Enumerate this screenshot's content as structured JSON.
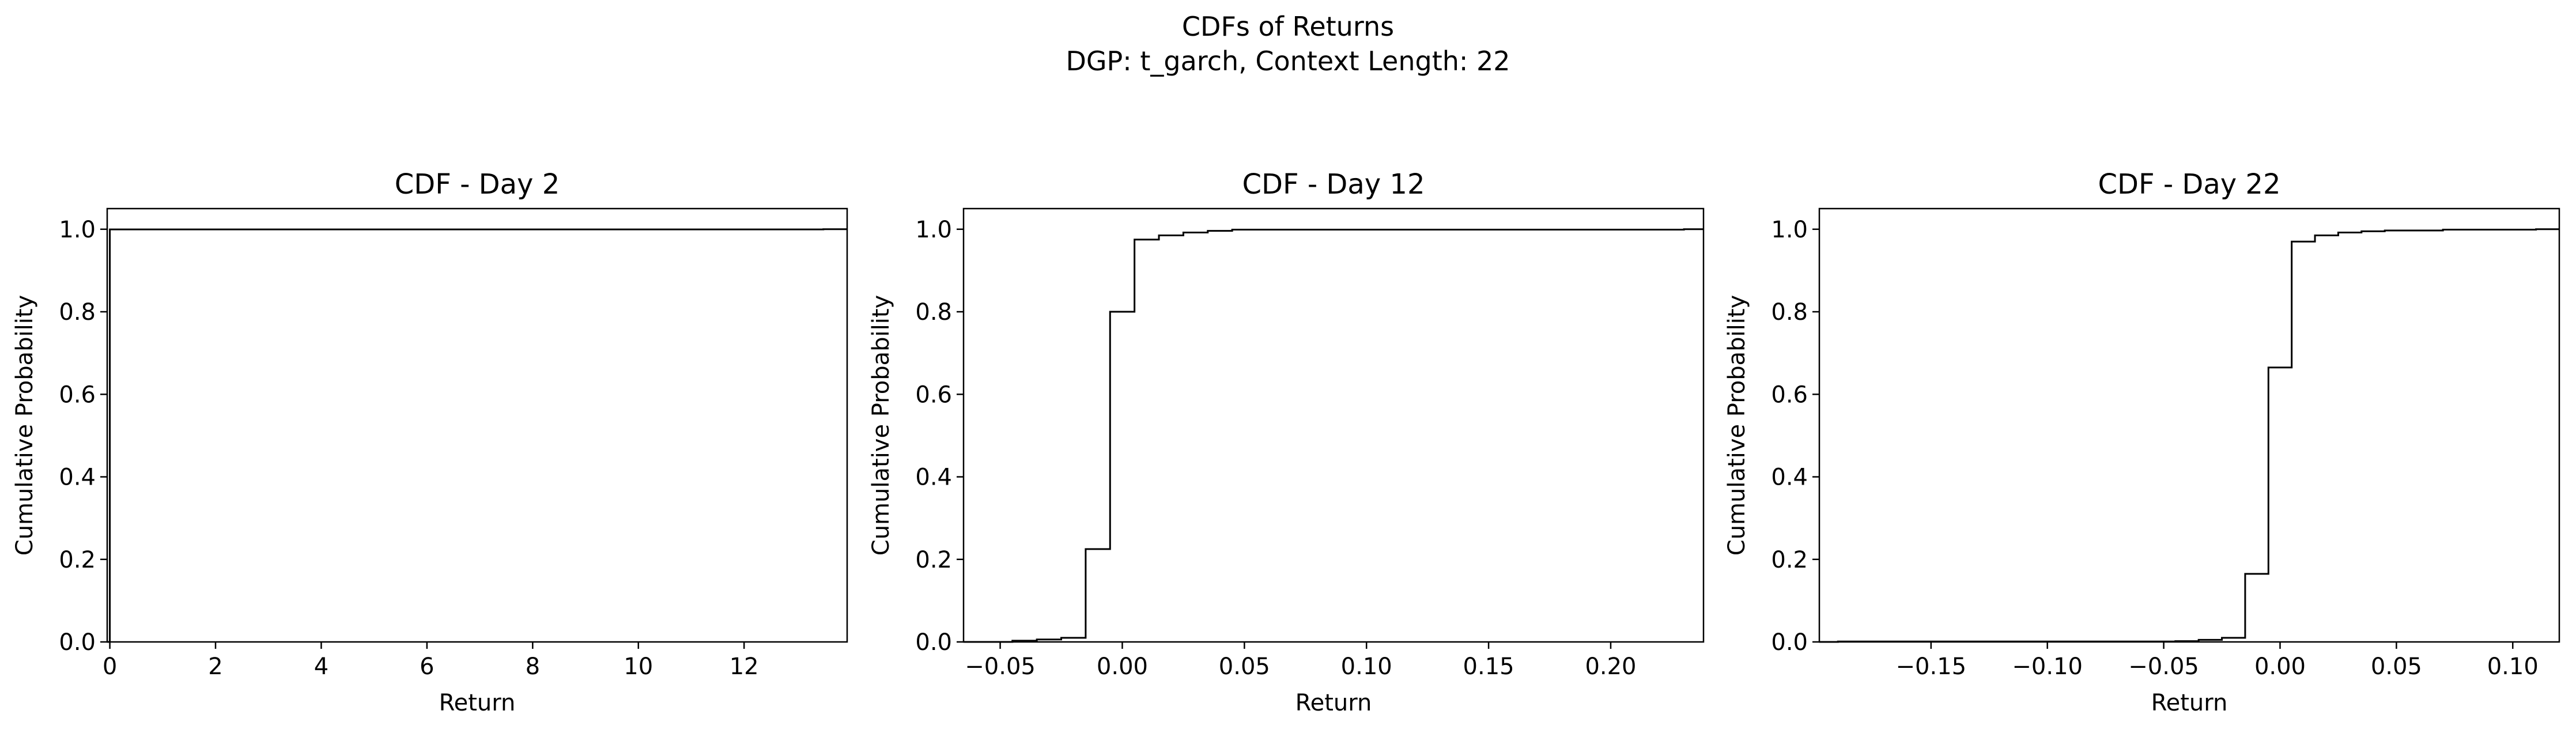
{
  "figure": {
    "title_line1": "CDFs of Returns",
    "title_line2": "DGP: t_garch, Context Length: 22"
  },
  "chart_data": [
    {
      "type": "line",
      "step": "post",
      "title": "CDF - Day 2",
      "xlabel": "Return",
      "ylabel": "Cumulative Probability",
      "xlim": [
        -0.05,
        13.95
      ],
      "ylim": [
        0.0,
        1.05
      ],
      "xticks": [
        0,
        2,
        4,
        6,
        8,
        10,
        12
      ],
      "xtick_labels": [
        "0",
        "2",
        "4",
        "6",
        "8",
        "10",
        "12"
      ],
      "yticks": [
        0.0,
        0.2,
        0.4,
        0.6,
        0.8,
        1.0
      ],
      "ytick_labels": [
        "0.0",
        "0.2",
        "0.4",
        "0.6",
        "0.8",
        "1.0"
      ],
      "line_color": "#000000",
      "series": [
        {
          "x": [
            -0.05,
            0.0,
            13.5,
            13.95
          ],
          "y": [
            0.0,
            0.9995,
            1.0,
            1.0
          ]
        }
      ]
    },
    {
      "type": "line",
      "step": "post",
      "title": "CDF - Day 12",
      "xlabel": "Return",
      "ylabel": "Cumulative Probability",
      "xlim": [
        -0.065,
        0.238
      ],
      "ylim": [
        0.0,
        1.05
      ],
      "xticks": [
        -0.05,
        0.0,
        0.05,
        0.1,
        0.15,
        0.2
      ],
      "xtick_labels": [
        "−0.05",
        "0.00",
        "0.05",
        "0.10",
        "0.15",
        "0.20"
      ],
      "yticks": [
        0.0,
        0.2,
        0.4,
        0.6,
        0.8,
        1.0
      ],
      "ytick_labels": [
        "0.0",
        "0.2",
        "0.4",
        "0.6",
        "0.8",
        "1.0"
      ],
      "line_color": "#000000",
      "series": [
        {
          "x": [
            -0.065,
            -0.045,
            -0.035,
            -0.025,
            -0.015,
            -0.005,
            0.005,
            0.015,
            0.025,
            0.035,
            0.045,
            0.23,
            0.238
          ],
          "y": [
            0.0,
            0.003,
            0.006,
            0.01,
            0.225,
            0.8,
            0.975,
            0.985,
            0.992,
            0.996,
            0.999,
            1.0,
            1.0
          ]
        }
      ]
    },
    {
      "type": "line",
      "step": "post",
      "title": "CDF - Day 22",
      "xlabel": "Return",
      "ylabel": "Cumulative Probability",
      "xlim": [
        -0.198,
        0.12
      ],
      "ylim": [
        0.0,
        1.05
      ],
      "xticks": [
        -0.15,
        -0.1,
        -0.05,
        0.0,
        0.05,
        0.1
      ],
      "xtick_labels": [
        "−0.15",
        "−0.10",
        "−0.05",
        "0.00",
        "0.05",
        "0.10"
      ],
      "yticks": [
        0.0,
        0.2,
        0.4,
        0.6,
        0.8,
        1.0
      ],
      "ytick_labels": [
        "0.0",
        "0.2",
        "0.4",
        "0.6",
        "0.8",
        "1.0"
      ],
      "line_color": "#000000",
      "series": [
        {
          "x": [
            -0.198,
            -0.19,
            -0.045,
            -0.035,
            -0.025,
            -0.015,
            -0.005,
            0.005,
            0.015,
            0.025,
            0.035,
            0.045,
            0.07,
            0.11,
            0.12
          ],
          "y": [
            0.0,
            0.001,
            0.002,
            0.005,
            0.01,
            0.165,
            0.665,
            0.97,
            0.985,
            0.992,
            0.995,
            0.997,
            0.999,
            1.0,
            1.0
          ]
        }
      ]
    }
  ]
}
